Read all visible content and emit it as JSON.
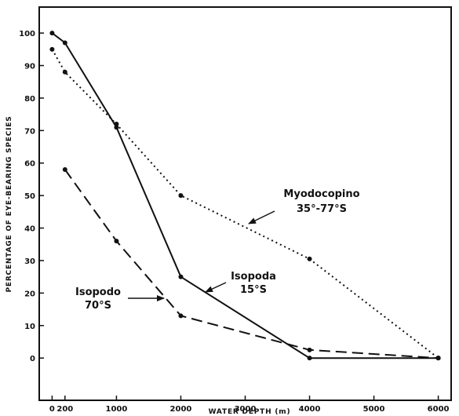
{
  "chart_data": {
    "type": "line",
    "xlabel": "WATER DEPTH (m)",
    "ylabel": "PERCENTAGE OF EYE-BEARING SPECIES",
    "xlim": [
      -200,
      6200
    ],
    "ylim": [
      -13,
      108
    ],
    "x_ticks": [
      0,
      200,
      1000,
      2000,
      3000,
      4000,
      5000,
      6000
    ],
    "x_tick_labels": [
      "0",
      "200",
      "1000",
      "2000",
      "3000",
      "4000",
      "5000",
      "6000"
    ],
    "y_ticks": [
      0,
      10,
      20,
      30,
      40,
      50,
      60,
      70,
      80,
      90,
      100
    ],
    "y_tick_labels": [
      "0",
      "10",
      "20",
      "30",
      "40",
      "50",
      "60",
      "70",
      "80",
      "90",
      "100"
    ],
    "grid": false,
    "legend": "none (series identified by in-plot annotations)",
    "series": [
      {
        "line_style": "solid",
        "color": "#111111",
        "x": [
          0,
          200,
          1000,
          2000,
          4000,
          6000
        ],
        "y": [
          100,
          97,
          71,
          25,
          0,
          0
        ]
      },
      {
        "line_style": "dotted",
        "color": "#111111",
        "x": [
          0,
          200,
          1000,
          2000,
          4000,
          6000
        ],
        "y": [
          95,
          88,
          72,
          50,
          30.5,
          0
        ]
      },
      {
        "line_style": "dashed",
        "color": "#111111",
        "x": [
          200,
          1000,
          2000,
          4000,
          6000
        ],
        "y": [
          58,
          36,
          13,
          2.5,
          0
        ]
      }
    ],
    "annotations": [
      {
        "id": "myodocopina",
        "lines": [
          "Myodocopino",
          "35°-77°S"
        ]
      },
      {
        "id": "isopoda-15",
        "lines": [
          "Isopoda",
          "15°S"
        ]
      },
      {
        "id": "isopoda-70",
        "lines": [
          "Isopodo",
          "70°S"
        ]
      }
    ]
  }
}
